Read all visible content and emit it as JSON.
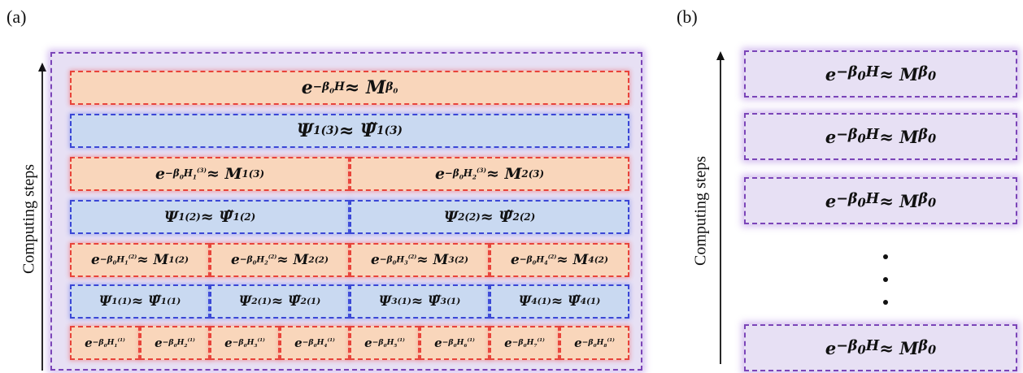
{
  "panels": {
    "a_label": "(a)",
    "b_label": "(b)",
    "axis_label": "Computing steps"
  },
  "panel_a_rows": [
    {
      "kind": "orange",
      "cells": [
        "e<sup>−β<sub>0</sub>H</sup> ≈ M<sub>β<sub>0</sub></sub>"
      ]
    },
    {
      "kind": "blue",
      "cells": [
        "Ψ<sub>1</sub><sup>(3)</sup> ≈ Ψ̃<sub>1</sub><sup>(3)</sup>"
      ]
    },
    {
      "kind": "orange",
      "cells": [
        "e<sup>−β<sub>0</sub>H<sub>1</sub><sup>(3)</sup></sup> ≈ M<sub>1</sub><sup>(3)</sup>",
        "e<sup>−β<sub>0</sub>H<sub>2</sub><sup>(3)</sup></sup> ≈ M<sub>2</sub><sup>(3)</sup>"
      ]
    },
    {
      "kind": "blue",
      "cells": [
        "Ψ<sub>1</sub><sup>(2)</sup> ≈ Ψ̃<sub>1</sub><sup>(2)</sup>",
        "Ψ<sub>2</sub><sup>(2)</sup> ≈ Ψ̃<sub>2</sub><sup>(2)</sup>"
      ]
    },
    {
      "kind": "orange",
      "cells": [
        "e<sup>−β<sub>0</sub>H<sub>1</sub><sup>(2)</sup></sup> ≈ M<sub>1</sub><sup>(2)</sup>",
        "e<sup>−β<sub>0</sub>H<sub>2</sub><sup>(2)</sup></sup> ≈ M<sub>2</sub><sup>(2)</sup>",
        "e<sup>−β<sub>0</sub>H<sub>3</sub><sup>(2)</sup></sup> ≈ M<sub>3</sub><sup>(2)</sup>",
        "e<sup>−β<sub>0</sub>H<sub>4</sub><sup>(2)</sup></sup> ≈ M<sub>4</sub><sup>(2)</sup>"
      ]
    },
    {
      "kind": "blue",
      "cells": [
        "Ψ<sub>1</sub><sup>(1)</sup> ≈ Ψ̃<sub>1</sub><sup>(1)</sup>",
        "Ψ<sub>2</sub><sup>(1)</sup> ≈ Ψ̃<sub>2</sub><sup>(1)</sup>",
        "Ψ<sub>3</sub><sup>(1)</sup> ≈ Ψ̃<sub>3</sub><sup>(1)</sup>",
        "Ψ<sub>4</sub><sup>(1)</sup> ≈ Ψ̃<sub>4</sub><sup>(1)</sup>"
      ]
    },
    {
      "kind": "orange",
      "cells": [
        "e<sup>−β<sub>0</sub>H<sub>1</sub><sup>(1)</sup></sup>",
        "e<sup>−β<sub>0</sub>H<sub>2</sub><sup>(1)</sup></sup>",
        "e<sup>−β<sub>0</sub>H<sub>3</sub><sup>(1)</sup></sup>",
        "e<sup>−β<sub>0</sub>H<sub>4</sub><sup>(1)</sup></sup>",
        "e<sup>−β<sub>0</sub>H<sub>5</sub><sup>(1)</sup></sup>",
        "e<sup>−β<sub>0</sub>H<sub>6</sub><sup>(1)</sup></sup>",
        "e<sup>−β<sub>0</sub>H<sub>7</sub><sup>(1)</sup></sup>",
        "e<sup>−β<sub>0</sub>H<sub>8</sub><sup>(1)</sup></sup>"
      ]
    }
  ],
  "panel_b_boxes": [
    "e<sup>−β<sub>0</sub>H</sup> ≈ M<sub>β<sub>0</sub></sub>",
    "e<sup>−β<sub>0</sub>H</sup> ≈ M<sub>β<sub>0</sub></sub>",
    "e<sup>−β<sub>0</sub>H</sup> ≈ M<sub>β<sub>0</sub></sub>",
    "e<sup>−β<sub>0</sub>H</sup> ≈ M<sub>β<sub>0</sub></sub>"
  ],
  "colors": {
    "orange_fill": "#f9d6bb",
    "orange_border": "#e8443a",
    "blue_fill": "#c9d9f1",
    "blue_border": "#3a47d6",
    "purple_fill": "#e7e0f4",
    "purple_border": "#7b45b8"
  }
}
